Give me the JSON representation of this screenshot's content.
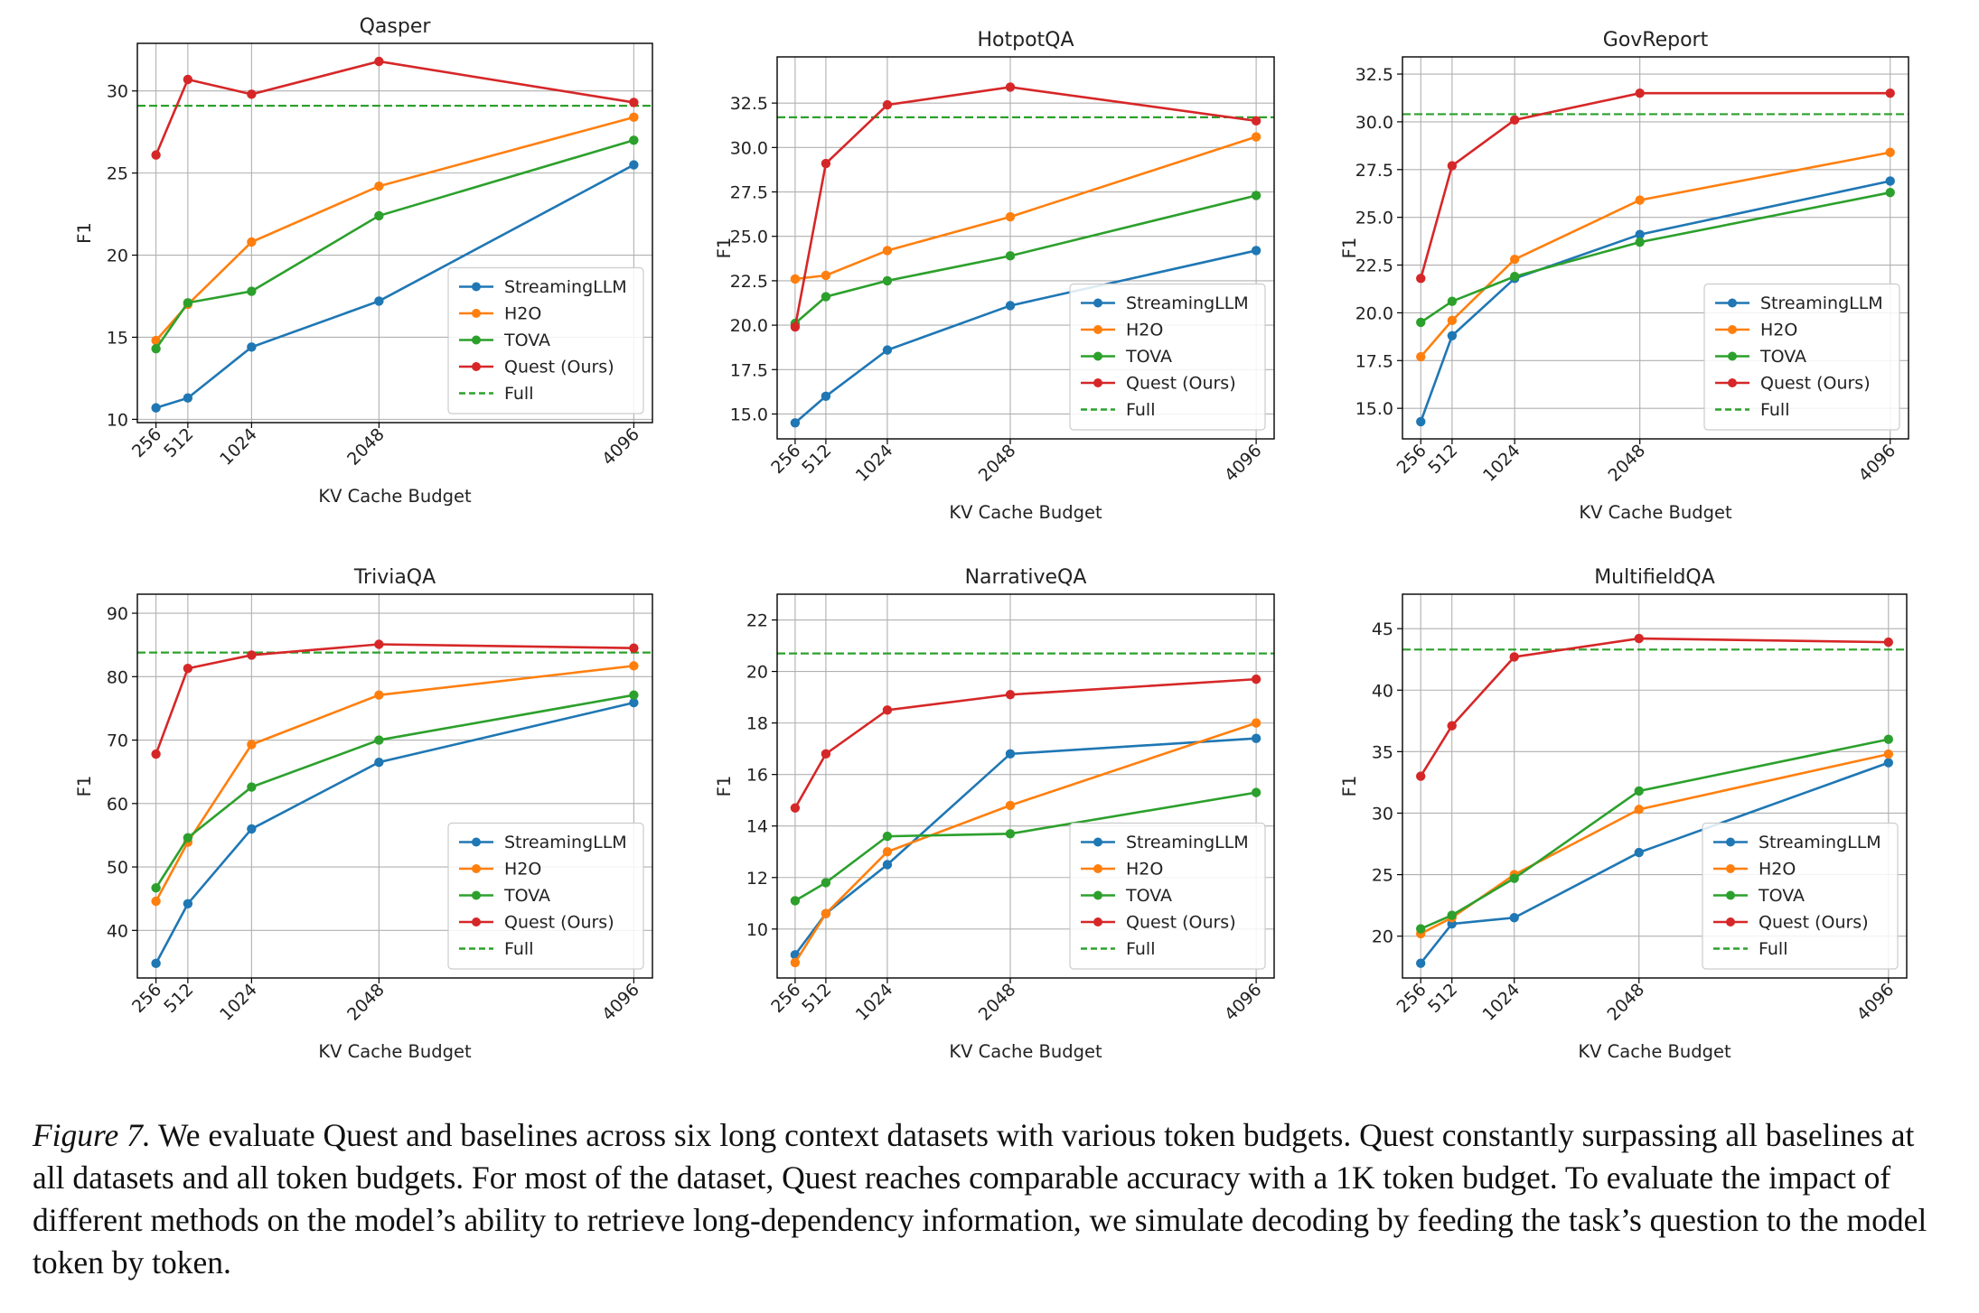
{
  "chart_data": [
    {
      "type": "line",
      "title": "Qasper",
      "xlabel": "KV Cache Budget",
      "ylabel": "F1",
      "x": [
        256,
        512,
        1024,
        2048,
        4096
      ],
      "x_tick_labels": [
        "256",
        "512",
        "1024",
        "2048",
        "4096"
      ],
      "ylim": [
        9.8,
        32.9
      ],
      "y_ticks": [
        10,
        15,
        20,
        25,
        30
      ],
      "y_tick_labels": [
        "10",
        "15",
        "20",
        "25",
        "30"
      ],
      "grid": true,
      "legend_position": "lower-right",
      "series": [
        {
          "name": "StreamingLLM",
          "color": "#1f77b4",
          "values": [
            10.7,
            11.3,
            14.4,
            17.2,
            25.5
          ]
        },
        {
          "name": "H2O",
          "color": "#ff7f0e",
          "values": [
            14.8,
            17.0,
            20.8,
            24.2,
            28.4
          ]
        },
        {
          "name": "TOVA",
          "color": "#2ca02c",
          "values": [
            14.3,
            17.1,
            17.8,
            22.4,
            27.0
          ]
        },
        {
          "name": "Quest (Ours)",
          "color": "#d62728",
          "values": [
            26.1,
            30.7,
            29.8,
            31.8,
            29.3
          ]
        }
      ],
      "reference": {
        "name": "Full",
        "color": "#2ca02c",
        "value": 29.1
      }
    },
    {
      "type": "line",
      "title": "HotpotQA",
      "xlabel": "KV Cache Budget",
      "ylabel": "F1",
      "x": [
        256,
        512,
        1024,
        2048,
        4096
      ],
      "x_tick_labels": [
        "256",
        "512",
        "1024",
        "2048",
        "4096"
      ],
      "ylim": [
        13.6,
        35.1
      ],
      "y_ticks": [
        15.0,
        17.5,
        20.0,
        22.5,
        25.0,
        27.5,
        30.0,
        32.5
      ],
      "y_tick_labels": [
        "15.0",
        "17.5",
        "20.0",
        "22.5",
        "25.0",
        "27.5",
        "30.0",
        "32.5"
      ],
      "grid": true,
      "legend_position": "lower-right",
      "series": [
        {
          "name": "StreamingLLM",
          "color": "#1f77b4",
          "values": [
            14.5,
            16.0,
            18.6,
            21.1,
            24.2
          ]
        },
        {
          "name": "H2O",
          "color": "#ff7f0e",
          "values": [
            22.6,
            22.8,
            24.2,
            26.1,
            30.6
          ]
        },
        {
          "name": "TOVA",
          "color": "#2ca02c",
          "values": [
            20.1,
            21.6,
            22.5,
            23.9,
            27.3
          ]
        },
        {
          "name": "Quest (Ours)",
          "color": "#d62728",
          "values": [
            19.9,
            29.1,
            32.4,
            33.4,
            31.5
          ]
        }
      ],
      "reference": {
        "name": "Full",
        "color": "#2ca02c",
        "value": 31.7
      }
    },
    {
      "type": "line",
      "title": "GovReport",
      "xlabel": "KV Cache Budget",
      "ylabel": "F1",
      "x": [
        256,
        512,
        1024,
        2048,
        4096
      ],
      "x_tick_labels": [
        "256",
        "512",
        "1024",
        "2048",
        "4096"
      ],
      "ylim": [
        13.4,
        33.4
      ],
      "y_ticks": [
        15.0,
        17.5,
        20.0,
        22.5,
        25.0,
        27.5,
        30.0,
        32.5
      ],
      "y_tick_labels": [
        "15.0",
        "17.5",
        "20.0",
        "22.5",
        "25.0",
        "27.5",
        "30.0",
        "32.5"
      ],
      "grid": true,
      "legend_position": "lower-right",
      "series": [
        {
          "name": "StreamingLLM",
          "color": "#1f77b4",
          "values": [
            14.3,
            18.8,
            21.8,
            24.1,
            26.9
          ]
        },
        {
          "name": "H2O",
          "color": "#ff7f0e",
          "values": [
            17.7,
            19.6,
            22.8,
            25.9,
            28.4
          ]
        },
        {
          "name": "TOVA",
          "color": "#2ca02c",
          "values": [
            19.5,
            20.6,
            21.9,
            23.7,
            26.3
          ]
        },
        {
          "name": "Quest (Ours)",
          "color": "#d62728",
          "values": [
            21.8,
            27.7,
            30.1,
            31.5,
            31.5
          ]
        }
      ],
      "reference": {
        "name": "Full",
        "color": "#2ca02c",
        "value": 30.4
      }
    },
    {
      "type": "line",
      "title": "TriviaQA",
      "xlabel": "KV Cache Budget",
      "ylabel": "F1",
      "x": [
        256,
        512,
        1024,
        2048,
        4096
      ],
      "x_tick_labels": [
        "256",
        "512",
        "1024",
        "2048",
        "4096"
      ],
      "ylim": [
        32.5,
        93
      ],
      "y_ticks": [
        40,
        50,
        60,
        70,
        80,
        90
      ],
      "y_tick_labels": [
        "40",
        "50",
        "60",
        "70",
        "80",
        "90"
      ],
      "grid": true,
      "legend_position": "lower-right",
      "series": [
        {
          "name": "StreamingLLM",
          "color": "#1f77b4",
          "values": [
            34.8,
            44.2,
            56.0,
            66.5,
            75.9
          ]
        },
        {
          "name": "H2O",
          "color": "#ff7f0e",
          "values": [
            44.6,
            53.9,
            69.3,
            77.1,
            81.7
          ]
        },
        {
          "name": "TOVA",
          "color": "#2ca02c",
          "values": [
            46.7,
            54.6,
            62.6,
            70.0,
            77.1
          ]
        },
        {
          "name": "Quest (Ours)",
          "color": "#d62728",
          "values": [
            67.8,
            81.3,
            83.4,
            85.1,
            84.5
          ]
        }
      ],
      "reference": {
        "name": "Full",
        "color": "#2ca02c",
        "value": 83.8
      }
    },
    {
      "type": "line",
      "title": "NarrativeQA",
      "xlabel": "KV Cache Budget",
      "ylabel": "F1",
      "x": [
        256,
        512,
        1024,
        2048,
        4096
      ],
      "x_tick_labels": [
        "256",
        "512",
        "1024",
        "2048",
        "4096"
      ],
      "ylim": [
        8.1,
        23.0
      ],
      "y_ticks": [
        10,
        12,
        14,
        16,
        18,
        20,
        22
      ],
      "y_tick_labels": [
        "10",
        "12",
        "14",
        "16",
        "18",
        "20",
        "22"
      ],
      "grid": true,
      "legend_position": "lower-right",
      "series": [
        {
          "name": "StreamingLLM",
          "color": "#1f77b4",
          "values": [
            9.0,
            10.6,
            12.5,
            16.8,
            17.4
          ]
        },
        {
          "name": "H2O",
          "color": "#ff7f0e",
          "values": [
            8.7,
            10.6,
            13.0,
            14.8,
            18.0
          ]
        },
        {
          "name": "TOVA",
          "color": "#2ca02c",
          "values": [
            11.1,
            11.8,
            13.6,
            13.7,
            15.3
          ]
        },
        {
          "name": "Quest (Ours)",
          "color": "#d62728",
          "values": [
            14.7,
            16.8,
            18.5,
            19.1,
            19.7
          ]
        }
      ],
      "reference": {
        "name": "Full",
        "color": "#2ca02c",
        "value": 20.7
      }
    },
    {
      "type": "line",
      "title": "MultifieldQA",
      "xlabel": "KV Cache Budget",
      "ylabel": "F1",
      "x": [
        256,
        512,
        1024,
        2048,
        4096
      ],
      "x_tick_labels": [
        "256",
        "512",
        "1024",
        "2048",
        "4096"
      ],
      "ylim": [
        16.6,
        47.8
      ],
      "y_ticks": [
        20,
        25,
        30,
        35,
        40,
        45
      ],
      "y_tick_labels": [
        "20",
        "25",
        "30",
        "35",
        "40",
        "45"
      ],
      "grid": true,
      "legend_position": "lower-right",
      "series": [
        {
          "name": "StreamingLLM",
          "color": "#1f77b4",
          "values": [
            17.8,
            21.0,
            21.5,
            26.8,
            34.1
          ]
        },
        {
          "name": "H2O",
          "color": "#ff7f0e",
          "values": [
            20.2,
            21.5,
            25.0,
            30.3,
            34.8
          ]
        },
        {
          "name": "TOVA",
          "color": "#2ca02c",
          "values": [
            20.6,
            21.7,
            24.7,
            31.8,
            36.0
          ]
        },
        {
          "name": "Quest (Ours)",
          "color": "#d62728",
          "values": [
            33.0,
            37.1,
            42.7,
            44.2,
            43.9
          ]
        }
      ],
      "reference": {
        "name": "Full",
        "color": "#2ca02c",
        "value": 43.3
      }
    }
  ],
  "caption": {
    "label": "Figure 7.",
    "text": " We evaluate Quest and baselines across six long context datasets with various token budgets. Quest constantly surpassing all baselines at all datasets and all token budgets. For most of the dataset, Quest reaches comparable accuracy with a 1K token budget. To evaluate the impact of different methods on the model’s ability to retrieve long-dependency information, we simulate decoding by feeding the task’s question to the model token by token."
  }
}
